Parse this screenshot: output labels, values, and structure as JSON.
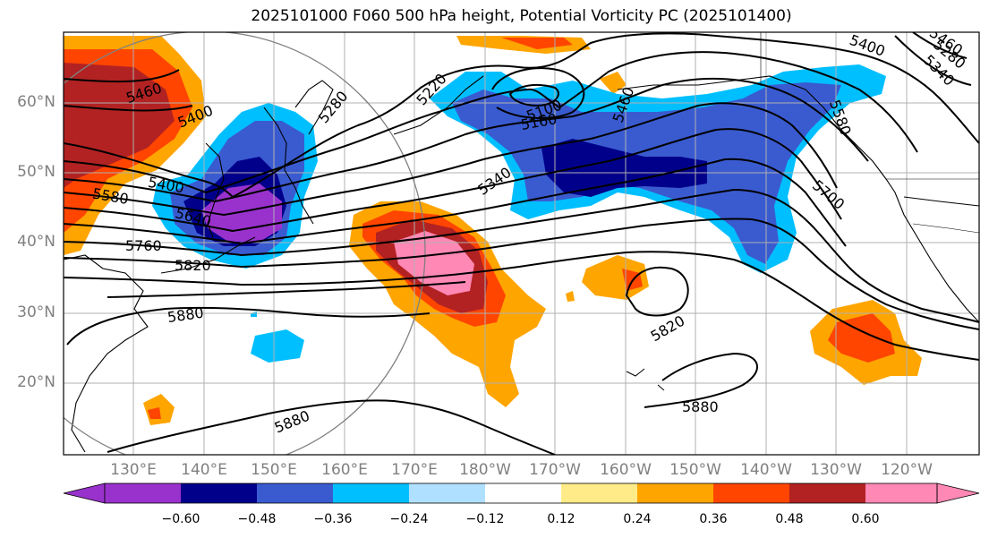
{
  "title": "2025101000 F060 500 hPa height, Potential Vorticity PC (2025101400)",
  "lat_labels": [
    "60°N",
    "50°N",
    "40°N",
    "30°N",
    "20°N"
  ],
  "lon_labels": [
    "130°E",
    "140°E",
    "150°E",
    "160°E",
    "170°E",
    "180°W",
    "170°W",
    "160°W",
    "150°W",
    "140°W",
    "130°W",
    "120°W"
  ],
  "colorbar": {
    "ticks": [
      "−0.60",
      "−0.48",
      "−0.36",
      "−0.24",
      "−0.12",
      "0.12",
      "0.24",
      "0.36",
      "0.48",
      "0.60"
    ],
    "colors": [
      "#9932CC",
      "#00008B",
      "#3A5BD0",
      "#00BFFF",
      "#B0E0FF",
      "#FFFFFF",
      "#FFEC88",
      "#FFA500",
      "#FF4500",
      "#B22222",
      "#FF88B4"
    ]
  },
  "contour_labels": [
    "5460",
    "5400",
    "5280",
    "5220",
    "5160",
    "5100",
    "5460",
    "5400",
    "5340",
    "5400",
    "5460",
    "5580",
    "5640",
    "5760",
    "5820",
    "5880",
    "5880",
    "5820",
    "5880",
    "5700",
    "5580",
    "5280",
    "5340"
  ]
}
